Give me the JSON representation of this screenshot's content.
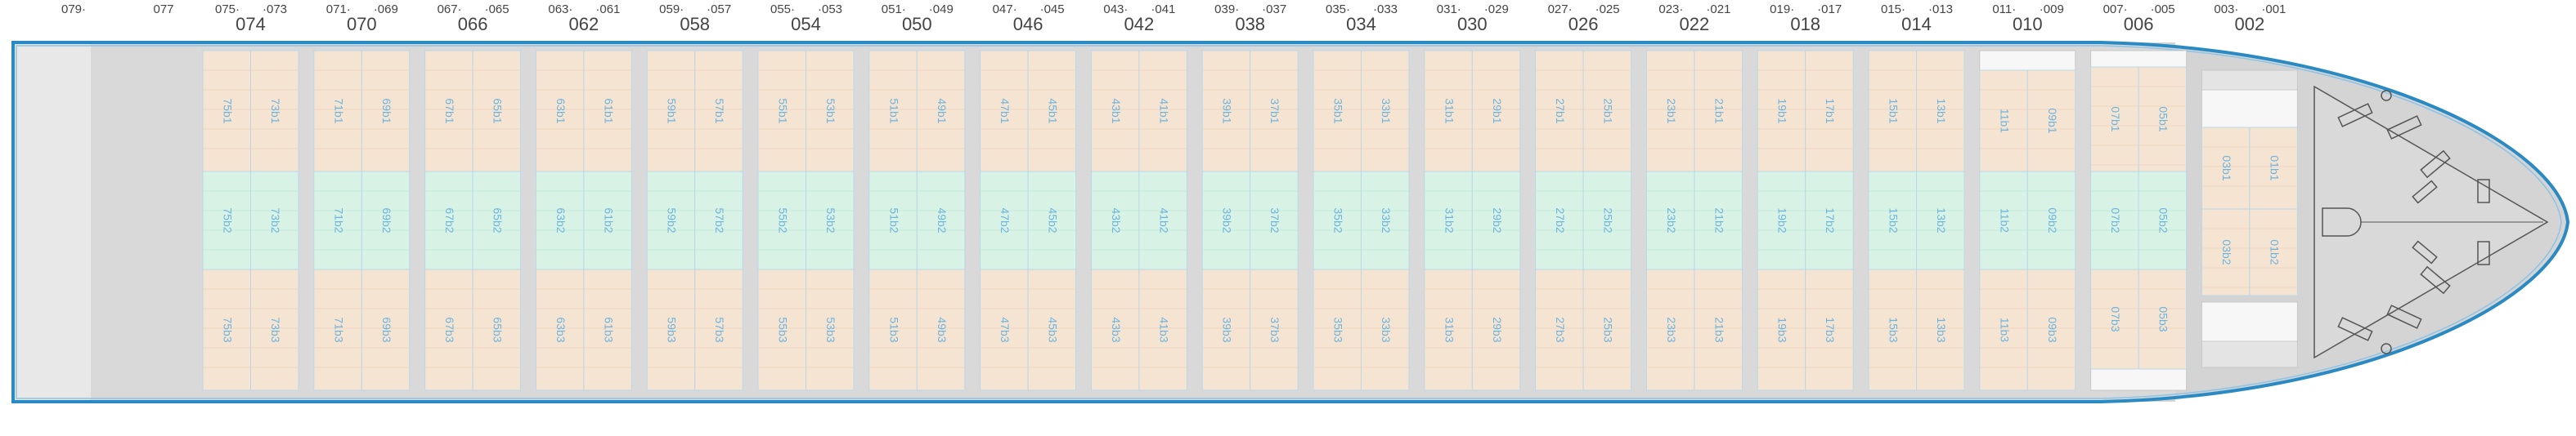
{
  "standalone_labels": [
    "079·",
    "077"
  ],
  "bays": [
    {
      "left": "075·",
      "right": "·073",
      "number": "074",
      "cells": [
        [
          "75b1",
          "73b1"
        ],
        [
          "75b2",
          "73b2"
        ],
        [
          "75b3",
          "73b3"
        ]
      ]
    },
    {
      "left": "071·",
      "right": "·069",
      "number": "070",
      "cells": [
        [
          "71b1",
          "69b1"
        ],
        [
          "71b2",
          "69b2"
        ],
        [
          "71b3",
          "69b3"
        ]
      ]
    },
    {
      "left": "067·",
      "right": "·065",
      "number": "066",
      "cells": [
        [
          "67b1",
          "65b1"
        ],
        [
          "67b2",
          "65b2"
        ],
        [
          "67b3",
          "65b3"
        ]
      ]
    },
    {
      "left": "063·",
      "right": "·061",
      "number": "062",
      "cells": [
        [
          "63b1",
          "61b1"
        ],
        [
          "63b2",
          "61b2"
        ],
        [
          "63b3",
          "61b3"
        ]
      ]
    },
    {
      "left": "059·",
      "right": "·057",
      "number": "058",
      "cells": [
        [
          "59b1",
          "57b1"
        ],
        [
          "59b2",
          "57b2"
        ],
        [
          "59b3",
          "57b3"
        ]
      ]
    },
    {
      "left": "055·",
      "right": "·053",
      "number": "054",
      "cells": [
        [
          "55b1",
          "53b1"
        ],
        [
          "55b2",
          "53b2"
        ],
        [
          "55b3",
          "53b3"
        ]
      ]
    },
    {
      "left": "051·",
      "right": "·049",
      "number": "050",
      "cells": [
        [
          "51b1",
          "49b1"
        ],
        [
          "51b2",
          "49b2"
        ],
        [
          "51b3",
          "49b3"
        ]
      ]
    },
    {
      "left": "047·",
      "right": "·045",
      "number": "046",
      "cells": [
        [
          "47b1",
          "45b1"
        ],
        [
          "47b2",
          "45b2"
        ],
        [
          "47b3",
          "45b3"
        ]
      ]
    },
    {
      "left": "043·",
      "right": "·041",
      "number": "042",
      "cells": [
        [
          "43b1",
          "41b1"
        ],
        [
          "43b2",
          "41b2"
        ],
        [
          "43b3",
          "41b3"
        ]
      ]
    },
    {
      "left": "039·",
      "right": "·037",
      "number": "038",
      "cells": [
        [
          "39b1",
          "37b1"
        ],
        [
          "39b2",
          "37b2"
        ],
        [
          "39b3",
          "37b3"
        ]
      ]
    },
    {
      "left": "035·",
      "right": "·033",
      "number": "034",
      "cells": [
        [
          "35b1",
          "33b1"
        ],
        [
          "35b2",
          "33b2"
        ],
        [
          "35b3",
          "33b3"
        ]
      ]
    },
    {
      "left": "031·",
      "right": "·029",
      "number": "030",
      "cells": [
        [
          "31b1",
          "29b1"
        ],
        [
          "31b2",
          "29b2"
        ],
        [
          "31b3",
          "29b3"
        ]
      ]
    },
    {
      "left": "027·",
      "right": "·025",
      "number": "026",
      "cells": [
        [
          "27b1",
          "25b1"
        ],
        [
          "27b2",
          "25b2"
        ],
        [
          "27b3",
          "25b3"
        ]
      ]
    },
    {
      "left": "023·",
      "right": "·021",
      "number": "022",
      "cells": [
        [
          "23b1",
          "21b1"
        ],
        [
          "23b2",
          "21b2"
        ],
        [
          "23b3",
          "21b3"
        ]
      ]
    },
    {
      "left": "019·",
      "right": "·017",
      "number": "018",
      "cells": [
        [
          "19b1",
          "17b1"
        ],
        [
          "19b2",
          "17b2"
        ],
        [
          "19b3",
          "17b3"
        ]
      ]
    },
    {
      "left": "015·",
      "right": "·013",
      "number": "014",
      "cells": [
        [
          "15b1",
          "13b1"
        ],
        [
          "15b2",
          "13b2"
        ],
        [
          "15b3",
          "13b3"
        ]
      ]
    },
    {
      "left": "011·",
      "right": "·009",
      "number": "010",
      "cells": [
        [
          "11b1",
          "09b1"
        ],
        [
          "11b2",
          "09b2"
        ],
        [
          "11b3",
          "09b3"
        ]
      ]
    },
    {
      "left": "007·",
      "right": "·005",
      "number": "006",
      "cells": [
        [
          "07b1",
          "05b1"
        ],
        [
          "07b2",
          "05b2"
        ],
        [
          "07b3",
          "05b3"
        ]
      ]
    },
    {
      "left": "003·",
      "right": "·001",
      "number": "002",
      "cells": [
        [
          "03b1",
          "01b1"
        ],
        [
          "03b2",
          "01b2"
        ]
      ]
    }
  ]
}
